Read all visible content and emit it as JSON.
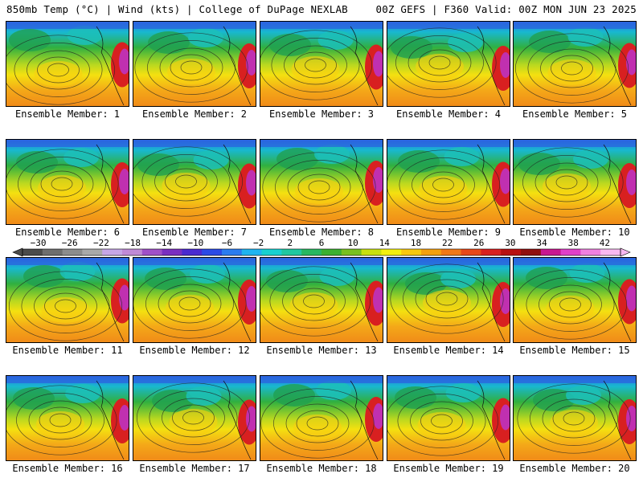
{
  "header": {
    "left": "850mb Temp (°C) | Wind (kts) | College of DuPage NEXLAB",
    "right": "00Z GEFS | F360 Valid: 00Z MON JUN 23 2025"
  },
  "chart_data": {
    "type": "heatmap",
    "title": "850mb Temp (°C) | Wind (kts)",
    "subtitle": "00Z GEFS | F360 Valid: 00Z MON JUN 23 2025",
    "panels": [
      {
        "member": 1,
        "label": "Ensemble Member: 1"
      },
      {
        "member": 2,
        "label": "Ensemble Member: 2"
      },
      {
        "member": 3,
        "label": "Ensemble Member: 3"
      },
      {
        "member": 4,
        "label": "Ensemble Member: 4"
      },
      {
        "member": 5,
        "label": "Ensemble Member: 5"
      },
      {
        "member": 6,
        "label": "Ensemble Member: 6"
      },
      {
        "member": 7,
        "label": "Ensemble Member: 7"
      },
      {
        "member": 8,
        "label": "Ensemble Member: 8"
      },
      {
        "member": 9,
        "label": "Ensemble Member: 9"
      },
      {
        "member": 10,
        "label": "Ensemble Member: 10"
      },
      {
        "member": 11,
        "label": "Ensemble Member: 11"
      },
      {
        "member": 12,
        "label": "Ensemble Member: 12"
      },
      {
        "member": 13,
        "label": "Ensemble Member: 13"
      },
      {
        "member": 14,
        "label": "Ensemble Member: 14"
      },
      {
        "member": 15,
        "label": "Ensemble Member: 15"
      },
      {
        "member": 16,
        "label": "Ensemble Member: 16"
      },
      {
        "member": 17,
        "label": "Ensemble Member: 17"
      },
      {
        "member": 18,
        "label": "Ensemble Member: 18"
      },
      {
        "member": 19,
        "label": "Ensemble Member: 19"
      },
      {
        "member": 20,
        "label": "Ensemble Member: 20"
      }
    ],
    "colorbar": {
      "unit": "°C",
      "range": [
        -32,
        44
      ],
      "ticks": [
        -30,
        -26,
        -22,
        -18,
        -14,
        -10,
        -6,
        -2,
        2,
        6,
        10,
        14,
        18,
        22,
        26,
        30,
        34,
        38,
        42
      ],
      "tick_labels": [
        "−30",
        "−26",
        "−22",
        "−18",
        "−14",
        "−10",
        "−6",
        "−2",
        "2",
        "6",
        "10",
        "14",
        "18",
        "22",
        "26",
        "30",
        "34",
        "38",
        "42"
      ],
      "colors": [
        "#4b4b4b",
        "#6e6e6e",
        "#8c8c8c",
        "#a9a9a9",
        "#c6a6e6",
        "#c08ad6",
        "#a050c8",
        "#7a2fc0",
        "#4a2ad0",
        "#2a4ae6",
        "#2a7cf0",
        "#1fb4f0",
        "#18d0d0",
        "#20c8a0",
        "#28b860",
        "#3cb030",
        "#78c020",
        "#c8e010",
        "#f4f010",
        "#f8c810",
        "#f4a010",
        "#f07818",
        "#e84818",
        "#d82020",
        "#b81010",
        "#901010",
        "#c81890",
        "#e040c8",
        "#f080e0",
        "#f8b8f0"
      ]
    }
  }
}
